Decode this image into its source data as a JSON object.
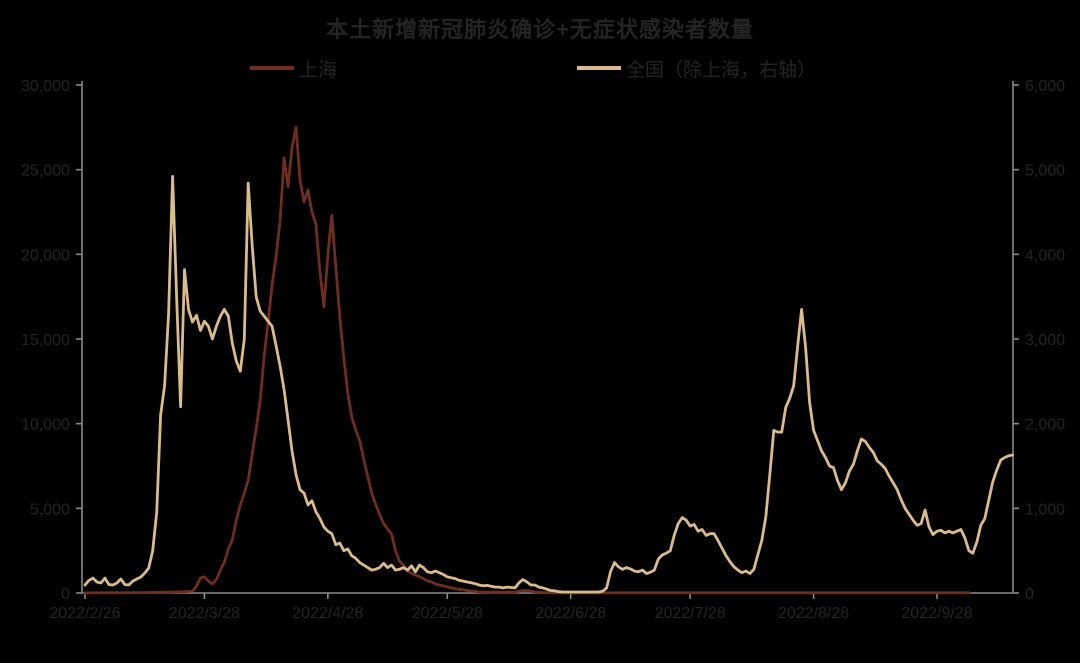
{
  "title": "本土新增新冠肺炎确诊+无症状感染者数量",
  "colors": {
    "background": "#000000",
    "text": "#242424",
    "axis": "#8a8a8a",
    "shanghai_line": "#6e2e1f",
    "national_line": "#d9bc8a"
  },
  "chart_data": {
    "type": "line",
    "title": "本土新增新冠肺炎确诊+无症状感染者数量",
    "legend_position": "top",
    "grid": false,
    "left_axis": {
      "min": 0,
      "max": 30000,
      "tick_labels": [
        "0",
        "5,000",
        "10,000",
        "15,000",
        "20,000",
        "25,000",
        "30,000"
      ]
    },
    "right_axis": {
      "min": 0,
      "max": 6000,
      "tick_labels": [
        "0",
        "1,000",
        "2,000",
        "3,000",
        "4,000",
        "5,000",
        "6,000"
      ]
    },
    "x_axis": {
      "start_date": "2022/2/26",
      "tick_days": [
        0,
        30,
        61,
        91,
        122,
        152,
        183,
        214
      ],
      "tick_labels": [
        "2022/2/26",
        "2022/3/28",
        "2022/4/28",
        "2022/5/28",
        "2022/6/28",
        "2022/7/28",
        "2022/8/28",
        "2022/9/28"
      ],
      "total_days": 233
    },
    "series": [
      {
        "name": "上海",
        "data_name": "shanghai-line",
        "axis": "left",
        "color": "#6e2e1f",
        "values": [
          10,
          8,
          12,
          10,
          14,
          10,
          15,
          12,
          16,
          14,
          18,
          15,
          20,
          18,
          22,
          25,
          30,
          35,
          40,
          45,
          50,
          55,
          60,
          65,
          70,
          75,
          90,
          110,
          400,
          890,
          950,
          700,
          530,
          800,
          1360,
          1800,
          2600,
          3130,
          4310,
          5200,
          5900,
          6670,
          8200,
          9700,
          11400,
          14000,
          16000,
          18200,
          19900,
          22000,
          25700,
          24000,
          26300,
          27520,
          24400,
          23100,
          23800,
          22500,
          21800,
          19000,
          16890,
          20000,
          22320,
          19250,
          16300,
          13900,
          11800,
          10400,
          9630,
          9000,
          7900,
          6900,
          5900,
          5250,
          4650,
          4100,
          3780,
          3480,
          2500,
          1870,
          1640,
          1300,
          1170,
          1060,
          970,
          850,
          720,
          650,
          540,
          470,
          420,
          360,
          310,
          250,
          220,
          190,
          150,
          120,
          90,
          60,
          60,
          55,
          50,
          50,
          50,
          45,
          45,
          45,
          50,
          100,
          130,
          150,
          100,
          60,
          40,
          25,
          20,
          10,
          10,
          10,
          10,
          10,
          10,
          10,
          10,
          10,
          10,
          10,
          10,
          10,
          10,
          10,
          10,
          10,
          10,
          10,
          10,
          10,
          10,
          10,
          10,
          10,
          10,
          10,
          10,
          10,
          10,
          10,
          10,
          10,
          10,
          10,
          10,
          10,
          10,
          10,
          10,
          10,
          10,
          10,
          10,
          10,
          10,
          10,
          10,
          10,
          10,
          10,
          10,
          10,
          10,
          10,
          10,
          10,
          10,
          10,
          10,
          10,
          10,
          10,
          10,
          10,
          10,
          10,
          10,
          10,
          10,
          10,
          10,
          10,
          10,
          10,
          10,
          10,
          10,
          10,
          10,
          10,
          10,
          10,
          10,
          10,
          10,
          10,
          10,
          10,
          10,
          10,
          10,
          10,
          10,
          10,
          10,
          10,
          10,
          10,
          10,
          10,
          10,
          10,
          10,
          10,
          10
        ]
      },
      {
        "name": "全国（除上海，右轴）",
        "data_name": "national-line",
        "axis": "right",
        "color": "#d9bc8a",
        "values": [
          94,
          150,
          176,
          130,
          118,
          176,
          100,
          94,
          118,
          165,
          100,
          94,
          141,
          165,
          188,
          235,
          294,
          500,
          950,
          2100,
          2450,
          3300,
          4920,
          3500,
          2200,
          3820,
          3350,
          3200,
          3280,
          3100,
          3210,
          3150,
          3000,
          3150,
          3270,
          3350,
          3270,
          2950,
          2740,
          2620,
          3000,
          4840,
          4100,
          3500,
          3330,
          3270,
          3210,
          3150,
          2920,
          2680,
          2400,
          2050,
          1680,
          1400,
          1220,
          1180,
          1040,
          1090,
          960,
          880,
          780,
          730,
          700,
          570,
          590,
          500,
          520,
          440,
          410,
          360,
          330,
          300,
          270,
          280,
          300,
          350,
          300,
          330,
          270,
          280,
          300,
          270,
          320,
          250,
          330,
          300,
          250,
          240,
          260,
          240,
          220,
          190,
          180,
          170,
          150,
          140,
          130,
          120,
          110,
          95,
          85,
          90,
          80,
          70,
          70,
          60,
          70,
          65,
          60,
          120,
          160,
          130,
          95,
          95,
          70,
          60,
          45,
          30,
          25,
          15,
          12,
          12,
          12,
          12,
          12,
          12,
          12,
          12,
          12,
          12,
          20,
          60,
          250,
          360,
          310,
          280,
          300,
          285,
          260,
          250,
          270,
          230,
          245,
          270,
          400,
          450,
          470,
          500,
          680,
          820,
          890,
          860,
          790,
          810,
          730,
          750,
          680,
          700,
          700,
          620,
          530,
          440,
          370,
          310,
          270,
          240,
          260,
          230,
          280,
          450,
          620,
          900,
          1400,
          1920,
          1900,
          1900,
          2190,
          2300,
          2450,
          2920,
          3350,
          2900,
          2250,
          1920,
          1800,
          1680,
          1600,
          1500,
          1480,
          1330,
          1220,
          1300,
          1440,
          1520,
          1680,
          1820,
          1790,
          1720,
          1660,
          1560,
          1520,
          1470,
          1380,
          1300,
          1220,
          1100,
          1000,
          930,
          860,
          800,
          820,
          980,
          780,
          690,
          730,
          740,
          710,
          730,
          710,
          730,
          750,
          650,
          500,
          470,
          600,
          800,
          880,
          1100,
          1310,
          1450,
          1570,
          1600,
          1620,
          1630
        ]
      }
    ]
  },
  "legend": {
    "shanghai_label": "上海",
    "national_label": "全国（除上海，右轴）"
  }
}
